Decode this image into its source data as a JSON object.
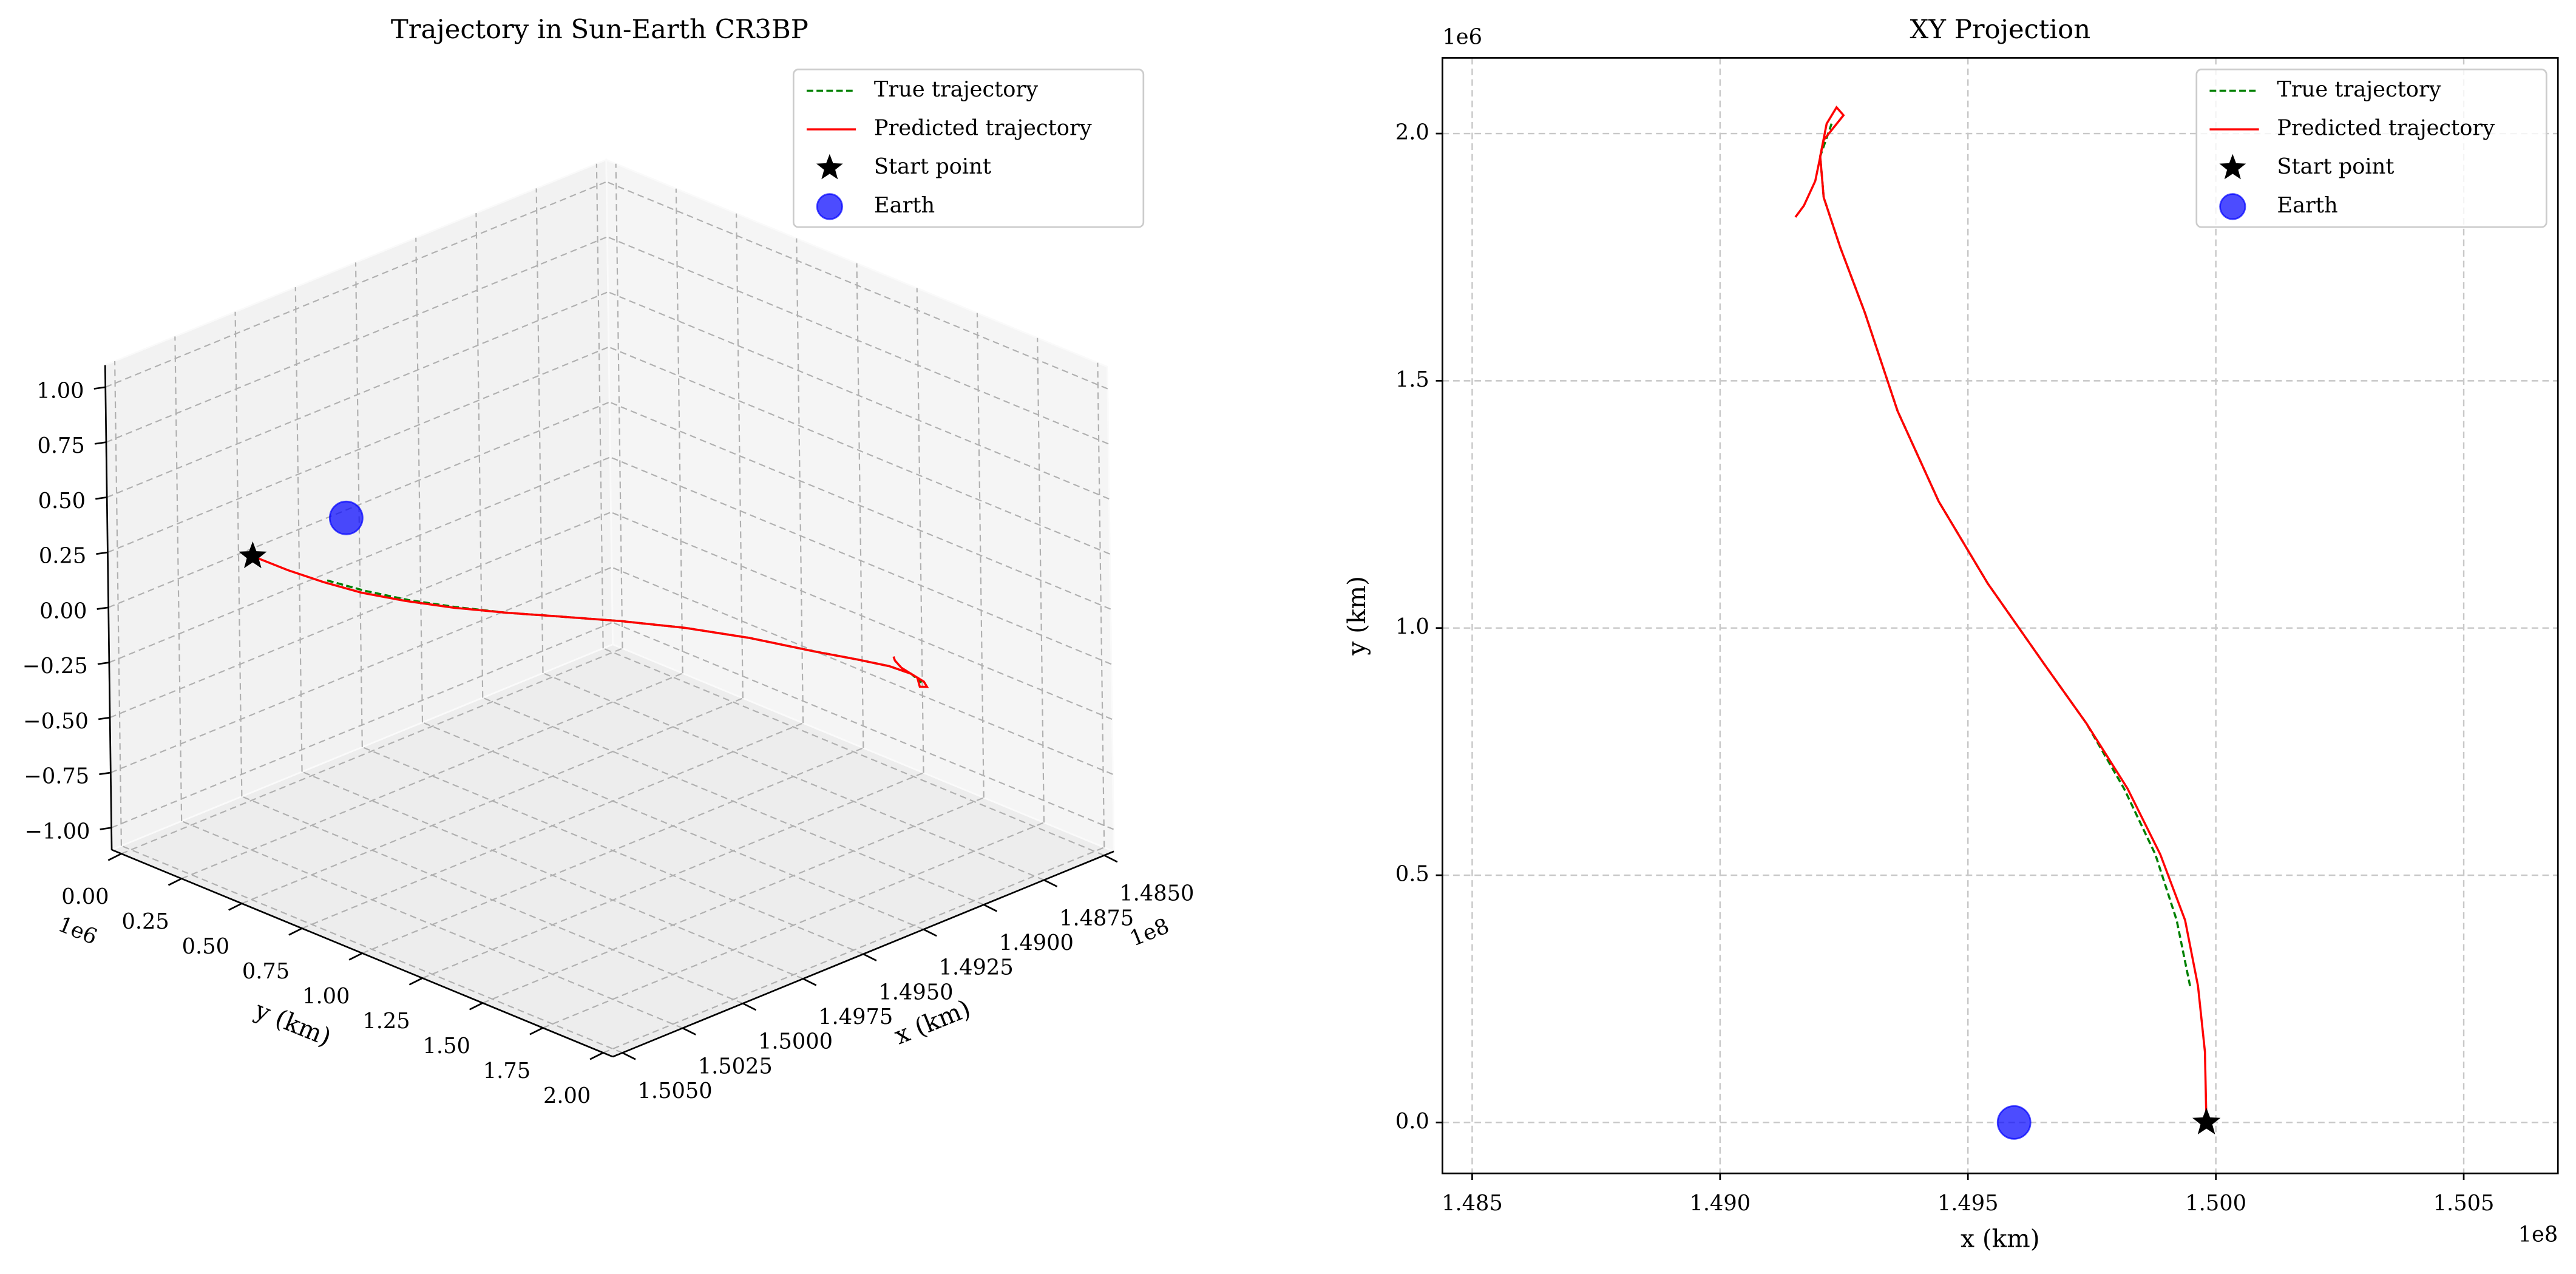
{
  "chart_data": [
    {
      "type": "line3d",
      "title": "Trajectory in Sun-Earth CR3BP",
      "xlabel": "x (km)",
      "ylabel": "y (km)",
      "x_offset": "1e8",
      "y_offset": "1e6",
      "xlim": [
        148460000,
        150540000
      ],
      "ylim": [
        -40000,
        2040000
      ],
      "zlim": [
        -1.1,
        1.1
      ],
      "xticks": [
        {
          "value": 148500000,
          "label": "1.4850"
        },
        {
          "value": 148750000,
          "label": "1.4875"
        },
        {
          "value": 149000000,
          "label": "1.4900"
        },
        {
          "value": 149250000,
          "label": "1.4925"
        },
        {
          "value": 149500000,
          "label": "1.4950"
        },
        {
          "value": 149750000,
          "label": "1.4975"
        },
        {
          "value": 150000000,
          "label": "1.5000"
        },
        {
          "value": 150250000,
          "label": "1.5025"
        },
        {
          "value": 150500000,
          "label": "1.5050"
        }
      ],
      "yticks": [
        {
          "value": 0,
          "label": "0.00"
        },
        {
          "value": 250000,
          "label": "0.25"
        },
        {
          "value": 500000,
          "label": "0.50"
        },
        {
          "value": 750000,
          "label": "0.75"
        },
        {
          "value": 1000000,
          "label": "1.00"
        },
        {
          "value": 1250000,
          "label": "1.25"
        },
        {
          "value": 1500000,
          "label": "1.50"
        },
        {
          "value": 1750000,
          "label": "1.75"
        },
        {
          "value": 2000000,
          "label": "2.00"
        }
      ],
      "zticks": [
        {
          "value": -1,
          "label": "−1.00"
        },
        {
          "value": -0.75,
          "label": "−0.75"
        },
        {
          "value": -0.5,
          "label": "−0.50"
        },
        {
          "value": -0.25,
          "label": "−0.25"
        },
        {
          "value": 0,
          "label": "0.00"
        },
        {
          "value": 0.25,
          "label": "0.25"
        },
        {
          "value": 0.5,
          "label": "0.50"
        },
        {
          "value": 0.75,
          "label": "0.75"
        },
        {
          "value": 1,
          "label": "1.00"
        }
      ],
      "grid": true,
      "legend": "upper right",
      "series": [
        {
          "name": "True trajectory",
          "color": "#008000",
          "linestyle": "--",
          "x": [
            149948000,
            149921000,
            149878000,
            149815000,
            149739000,
            149656000,
            149540000,
            149441000,
            149358000,
            149292000,
            149242000,
            149209000,
            149202000,
            149225000
          ],
          "y": [
            276000,
            409000,
            542000,
            675000,
            807000,
            924000,
            1090000,
            1256000,
            1439000,
            1638000,
            1771000,
            1871000,
            1954000,
            2020000
          ],
          "z": [
            0,
            0,
            0,
            0,
            0,
            0,
            0,
            0,
            0,
            0,
            0,
            0,
            0,
            0
          ]
        },
        {
          "name": "Predicted trajectory",
          "color": "#ff0000",
          "linestyle": "-",
          "x": [
            149981000,
            149978000,
            149964000,
            149938000,
            149888000,
            149822000,
            149739000,
            149656000,
            149540000,
            149441000,
            149358000,
            149292000,
            149242000,
            149209000,
            149202000,
            149215000,
            149235000,
            149249000,
            149209000,
            149192000,
            149169000,
            149152000
          ],
          "y": [
            0,
            143000,
            276000,
            409000,
            542000,
            675000,
            807000,
            924000,
            1090000,
            1256000,
            1439000,
            1638000,
            1771000,
            1871000,
            1954000,
            2020000,
            2053000,
            2037000,
            1987000,
            1904000,
            1854000,
            1831000
          ],
          "z": [
            0,
            0,
            0,
            0,
            0,
            0,
            0,
            0,
            0,
            0,
            0,
            0,
            0,
            0,
            0,
            0,
            0,
            0,
            0,
            0,
            0,
            0
          ]
        },
        {
          "name": "Start point",
          "color": "#000000",
          "marker": "star",
          "x": [
            149981000
          ],
          "y": [
            0
          ],
          "z": [
            0
          ]
        },
        {
          "name": "Earth",
          "color": "#0000ff",
          "marker": "circle",
          "alpha": 0.7,
          "x": [
            149593000
          ],
          "y": [
            0
          ],
          "z": [
            0
          ]
        }
      ]
    },
    {
      "type": "line",
      "title": "XY Projection",
      "xlabel": "x (km)",
      "ylabel": "y (km)",
      "x_offset": "1e8",
      "y_offset": "1e6",
      "xlim": [
        148440000,
        150690000
      ],
      "ylim": [
        -103000,
        2153000
      ],
      "xticks": [
        {
          "value": 148500000,
          "label": "1.485"
        },
        {
          "value": 149000000,
          "label": "1.490"
        },
        {
          "value": 149500000,
          "label": "1.495"
        },
        {
          "value": 150000000,
          "label": "1.500"
        },
        {
          "value": 150500000,
          "label": "1.505"
        }
      ],
      "yticks": [
        {
          "value": 0,
          "label": "0.0"
        },
        {
          "value": 500000,
          "label": "0.5"
        },
        {
          "value": 1000000,
          "label": "1.0"
        },
        {
          "value": 1500000,
          "label": "1.5"
        },
        {
          "value": 2000000,
          "label": "2.0"
        }
      ],
      "grid": true,
      "legend": "upper right",
      "series": [
        {
          "name": "True trajectory",
          "color": "#008000",
          "linestyle": "--",
          "x": [
            149948000,
            149921000,
            149878000,
            149815000,
            149739000,
            149656000,
            149540000,
            149441000,
            149358000,
            149292000,
            149242000,
            149209000,
            149202000,
            149225000
          ],
          "y": [
            276000,
            409000,
            542000,
            675000,
            807000,
            924000,
            1090000,
            1256000,
            1439000,
            1638000,
            1771000,
            1871000,
            1954000,
            2020000
          ]
        },
        {
          "name": "Predicted trajectory",
          "color": "#ff0000",
          "linestyle": "-",
          "x": [
            149981000,
            149978000,
            149964000,
            149938000,
            149888000,
            149822000,
            149739000,
            149656000,
            149540000,
            149441000,
            149358000,
            149292000,
            149242000,
            149209000,
            149202000,
            149215000,
            149235000,
            149249000,
            149209000,
            149192000,
            149169000,
            149152000
          ],
          "y": [
            0,
            143000,
            276000,
            409000,
            542000,
            675000,
            807000,
            924000,
            1090000,
            1256000,
            1439000,
            1638000,
            1771000,
            1871000,
            1954000,
            2020000,
            2053000,
            2037000,
            1987000,
            1904000,
            1854000,
            1831000
          ]
        },
        {
          "name": "Start point",
          "color": "#000000",
          "marker": "star",
          "x": [
            149981000
          ],
          "y": [
            0
          ]
        },
        {
          "name": "Earth",
          "color": "#0000ff",
          "marker": "circle",
          "alpha": 0.7,
          "x": [
            149593000
          ],
          "y": [
            0
          ]
        }
      ]
    }
  ]
}
